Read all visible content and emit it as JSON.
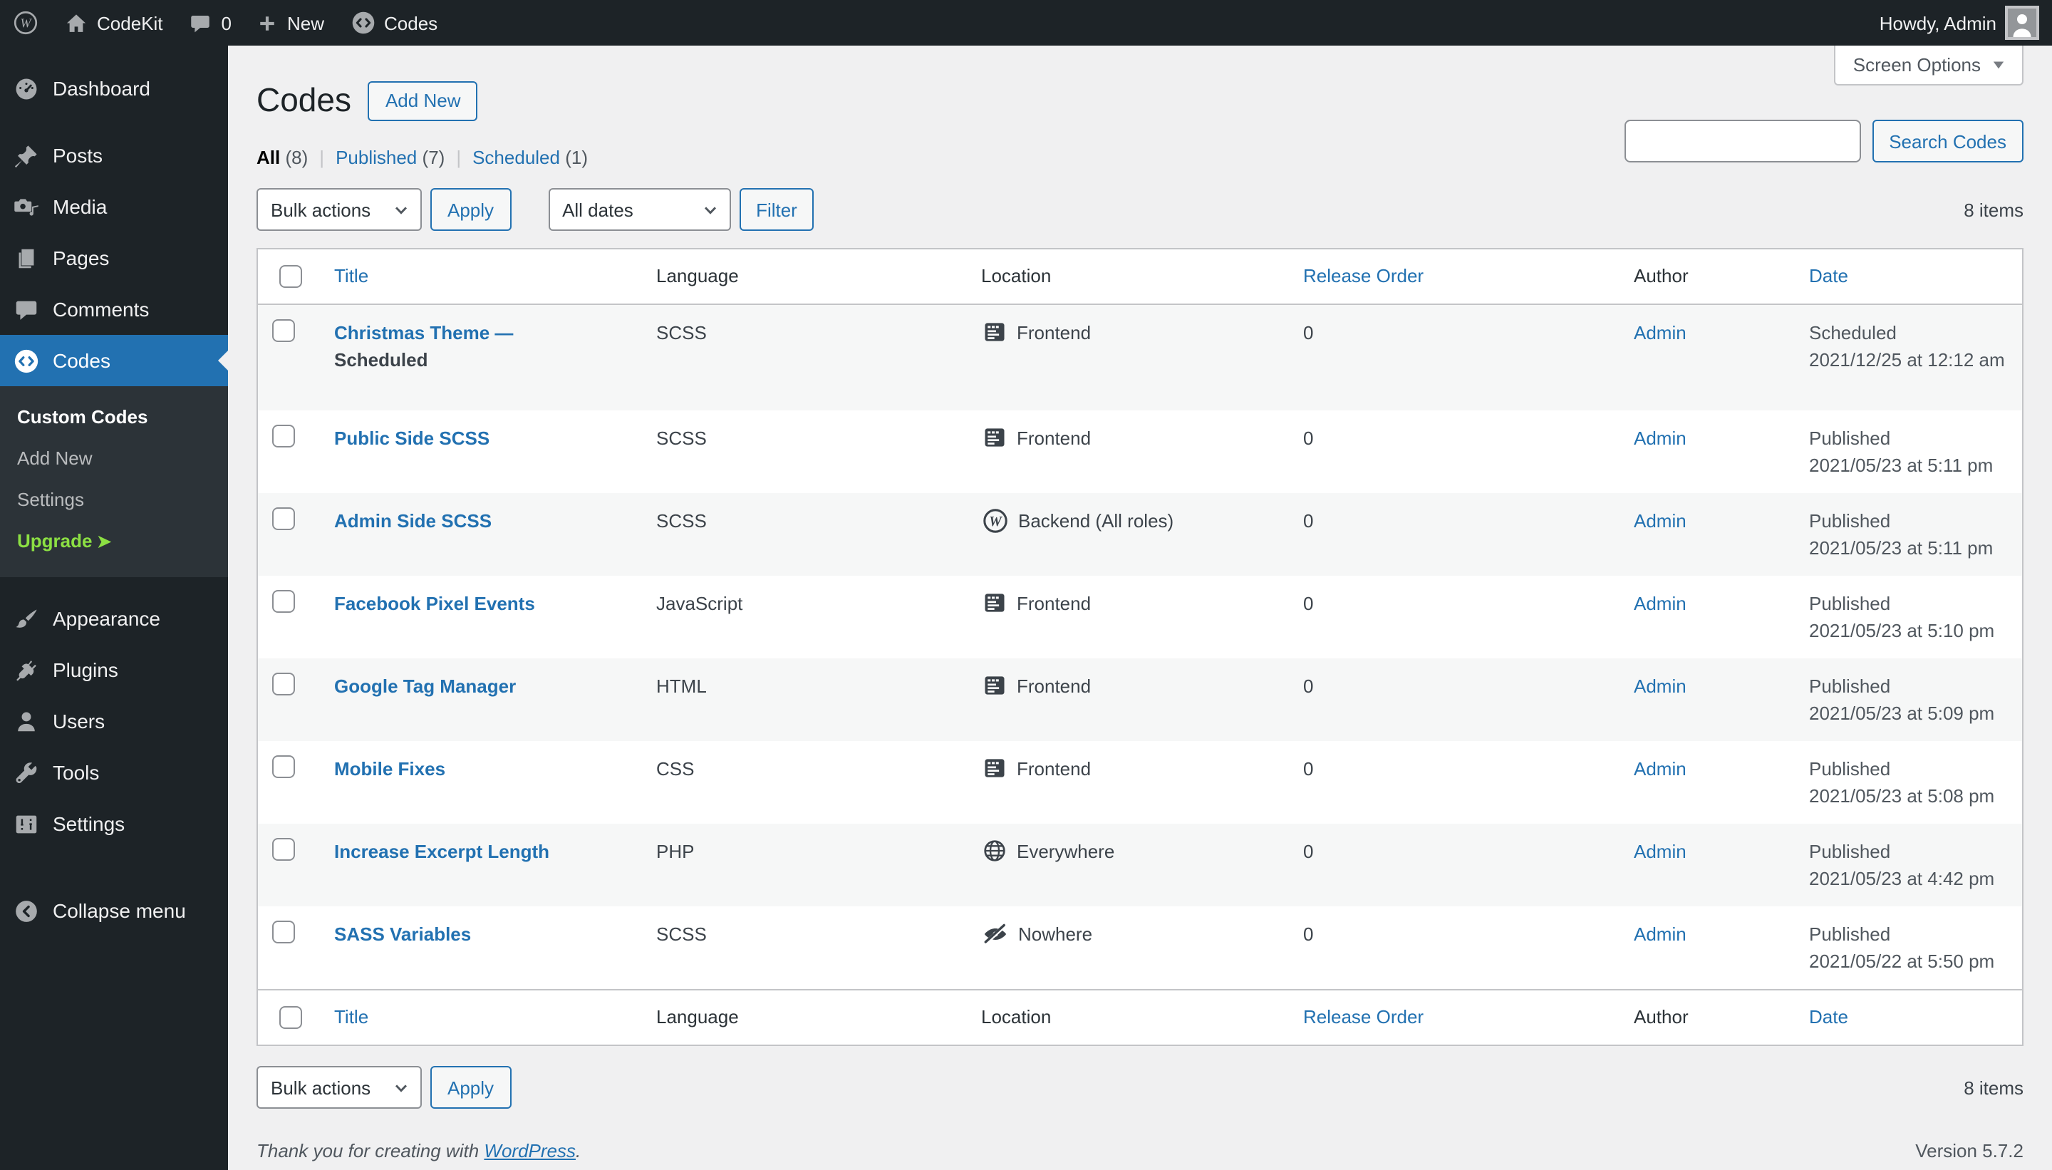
{
  "colors": {
    "accent": "#2271b1",
    "admin_bar_bg": "#1d2327",
    "submenu_bg": "#2c3338",
    "page_bg": "#f0f0f1",
    "row_stripe": "#f6f7f7",
    "upgrade_green": "#8ce043"
  },
  "admin_bar": {
    "site_name": "CodeKit",
    "comments_count": "0",
    "new_label": "New",
    "codes_label": "Codes",
    "howdy": "Howdy, Admin"
  },
  "sidebar": {
    "sections": [
      {
        "items": [
          {
            "label": "Dashboard",
            "icon": "dashboard-icon"
          }
        ]
      },
      {
        "items": [
          {
            "label": "Posts",
            "icon": "pin-icon"
          },
          {
            "label": "Media",
            "icon": "media-icon"
          },
          {
            "label": "Pages",
            "icon": "pages-icon"
          },
          {
            "label": "Comments",
            "icon": "comment-icon"
          },
          {
            "label": "Codes",
            "icon": "codes-icon",
            "active": true,
            "submenu": [
              {
                "label": "Custom Codes",
                "current": true
              },
              {
                "label": "Add New"
              },
              {
                "label": "Settings"
              },
              {
                "label": "Upgrade",
                "upgrade": true,
                "arrow": "➤"
              }
            ]
          }
        ]
      },
      {
        "items": [
          {
            "label": "Appearance",
            "icon": "appearance-icon"
          },
          {
            "label": "Plugins",
            "icon": "plugin-icon"
          },
          {
            "label": "Users",
            "icon": "users-icon"
          },
          {
            "label": "Tools",
            "icon": "tools-icon"
          },
          {
            "label": "Settings",
            "icon": "settings-icon"
          }
        ]
      },
      {
        "items": [
          {
            "label": "Collapse menu",
            "icon": "collapse-icon",
            "collapse": true
          }
        ]
      }
    ]
  },
  "page": {
    "screen_options_label": "Screen Options",
    "title": "Codes",
    "add_new_label": "Add New",
    "views": [
      {
        "label": "All",
        "count": "(8)",
        "active": true
      },
      {
        "label": "Published",
        "count": "(7)"
      },
      {
        "label": "Scheduled",
        "count": "(1)"
      }
    ],
    "toolbar": {
      "bulk_actions": "Bulk actions",
      "apply": "Apply",
      "dates_filter": "All dates",
      "filter": "Filter",
      "items_count": "8 items",
      "search_button": "Search Codes"
    }
  },
  "table": {
    "columns": [
      {
        "label": "Title",
        "sortable": true
      },
      {
        "label": "Language"
      },
      {
        "label": "Location"
      },
      {
        "label": "Release Order",
        "sortable": true
      },
      {
        "label": "Author"
      },
      {
        "label": "Date",
        "sortable": true
      }
    ],
    "rows": [
      {
        "title": "Christmas Theme —",
        "state": "Scheduled",
        "language": "SCSS",
        "location": {
          "icon": "frontend-window-icon",
          "label": "Frontend"
        },
        "release_order": "0",
        "author": "Admin",
        "date_status": "Scheduled",
        "date": "2021/12/25 at 12:12 am"
      },
      {
        "title": "Public Side SCSS",
        "language": "SCSS",
        "location": {
          "icon": "frontend-window-icon",
          "label": "Frontend"
        },
        "release_order": "0",
        "author": "Admin",
        "date_status": "Published",
        "date": "2021/05/23 at 5:11 pm"
      },
      {
        "title": "Admin Side SCSS",
        "language": "SCSS",
        "location": {
          "icon": "wordpress-backend-icon",
          "label": "Backend (All roles)"
        },
        "release_order": "0",
        "author": "Admin",
        "date_status": "Published",
        "date": "2021/05/23 at 5:11 pm"
      },
      {
        "title": "Facebook Pixel Events",
        "language": "JavaScript",
        "location": {
          "icon": "frontend-window-icon",
          "label": "Frontend"
        },
        "release_order": "0",
        "author": "Admin",
        "date_status": "Published",
        "date": "2021/05/23 at 5:10 pm"
      },
      {
        "title": "Google Tag Manager",
        "language": "HTML",
        "location": {
          "icon": "frontend-window-icon",
          "label": "Frontend"
        },
        "release_order": "0",
        "author": "Admin",
        "date_status": "Published",
        "date": "2021/05/23 at 5:09 pm"
      },
      {
        "title": "Mobile Fixes",
        "language": "CSS",
        "location": {
          "icon": "frontend-window-icon",
          "label": "Frontend"
        },
        "release_order": "0",
        "author": "Admin",
        "date_status": "Published",
        "date": "2021/05/23 at 5:08 pm"
      },
      {
        "title": "Increase Excerpt Length",
        "language": "PHP",
        "location": {
          "icon": "globe-everywhere-icon",
          "label": "Everywhere"
        },
        "release_order": "0",
        "author": "Admin",
        "date_status": "Published",
        "date": "2021/05/23 at 4:42 pm"
      },
      {
        "title": "SASS Variables",
        "language": "SCSS",
        "location": {
          "icon": "eye-slash-nowhere-icon",
          "label": "Nowhere"
        },
        "release_order": "0",
        "author": "Admin",
        "date_status": "Published",
        "date": "2021/05/22 at 5:50 pm"
      }
    ]
  },
  "footer": {
    "thanks_prefix": "Thank you for creating with ",
    "wordpress_link": "WordPress",
    "thanks_suffix": ".",
    "version": "Version 5.7.2"
  }
}
